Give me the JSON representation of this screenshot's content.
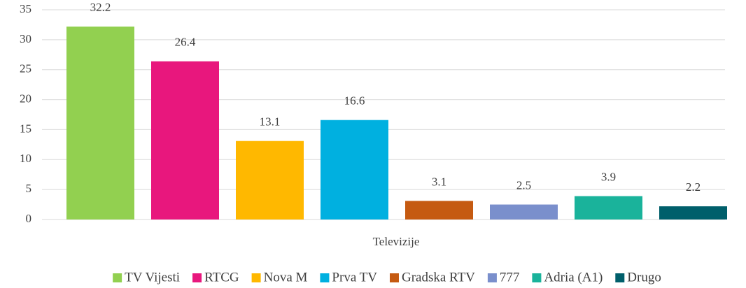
{
  "chart_data": {
    "type": "bar",
    "categories": [
      "Televizije"
    ],
    "series": [
      {
        "name": "TV Vijesti",
        "color": "#92d050",
        "values": [
          32.2
        ]
      },
      {
        "name": "RTCG",
        "color": "#e8177d",
        "values": [
          26.4
        ]
      },
      {
        "name": "Nova M",
        "color": "#ffb800",
        "values": [
          13.1
        ]
      },
      {
        "name": "Prva TV",
        "color": "#00b0e0",
        "values": [
          16.6
        ]
      },
      {
        "name": "Gradska RTV",
        "color": "#c55a11",
        "values": [
          3.1
        ]
      },
      {
        "name": "777",
        "color": "#7a8fcc",
        "values": [
          2.5
        ]
      },
      {
        "name": "Adria (A1)",
        "color": "#1ab39b",
        "values": [
          3.9
        ]
      },
      {
        "name": "Drugo",
        "color": "#005f6b",
        "values": [
          2.2
        ]
      }
    ],
    "ylim": [
      0,
      35
    ],
    "yticks": [
      0,
      5,
      10,
      15,
      20,
      25,
      30,
      35
    ],
    "grid": true,
    "legend": "bottom"
  }
}
